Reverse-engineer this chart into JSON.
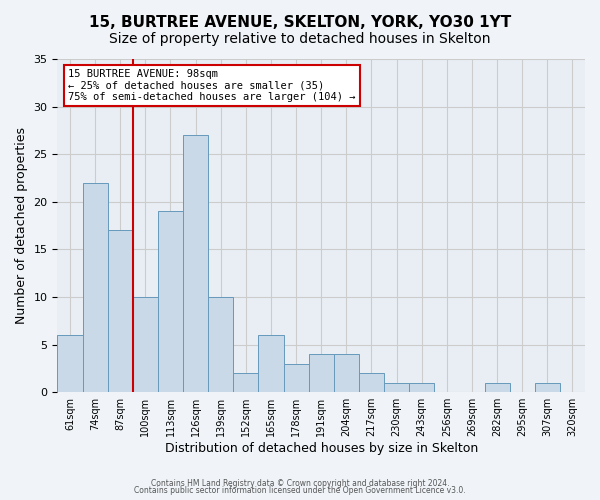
{
  "title1": "15, BURTREE AVENUE, SKELTON, YORK, YO30 1YT",
  "title2": "Size of property relative to detached houses in Skelton",
  "xlabel": "Distribution of detached houses by size in Skelton",
  "ylabel": "Number of detached properties",
  "bar_labels": [
    "61sqm",
    "74sqm",
    "87sqm",
    "100sqm",
    "113sqm",
    "126sqm",
    "139sqm",
    "152sqm",
    "165sqm",
    "178sqm",
    "191sqm",
    "204sqm",
    "217sqm",
    "230sqm",
    "243sqm",
    "256sqm",
    "269sqm",
    "282sqm",
    "295sqm",
    "307sqm",
    "320sqm"
  ],
  "bar_values": [
    6,
    22,
    17,
    10,
    19,
    27,
    10,
    2,
    6,
    3,
    4,
    4,
    2,
    1,
    1,
    0,
    0,
    1,
    0,
    1,
    0
  ],
  "bar_color": "#c9d9e8",
  "bar_edge_color": "#6699bb",
  "bar_width": 1.0,
  "vline_x": 2.5,
  "vline_color": "#cc0000",
  "annotation_text": "15 BURTREE AVENUE: 98sqm\n← 25% of detached houses are smaller (35)\n75% of semi-detached houses are larger (104) →",
  "annotation_box_color": "#cc0000",
  "annotation_bg_color": "#ffffff",
  "ylim": [
    0,
    35
  ],
  "yticks": [
    0,
    5,
    10,
    15,
    20,
    25,
    30,
    35
  ],
  "grid_color": "#cccccc",
  "bg_color": "#e8eef4",
  "fig_bg_color": "#f0f4f8",
  "footer1": "Contains HM Land Registry data © Crown copyright and database right 2024.",
  "footer2": "Contains public sector information licensed under the Open Government Licence v3.0.",
  "title1_fontsize": 11,
  "title2_fontsize": 10,
  "xlabel_fontsize": 9,
  "ylabel_fontsize": 9,
  "tick_fontsize": 7,
  "annotation_fontsize": 7.5,
  "footer_fontsize": 5.5
}
